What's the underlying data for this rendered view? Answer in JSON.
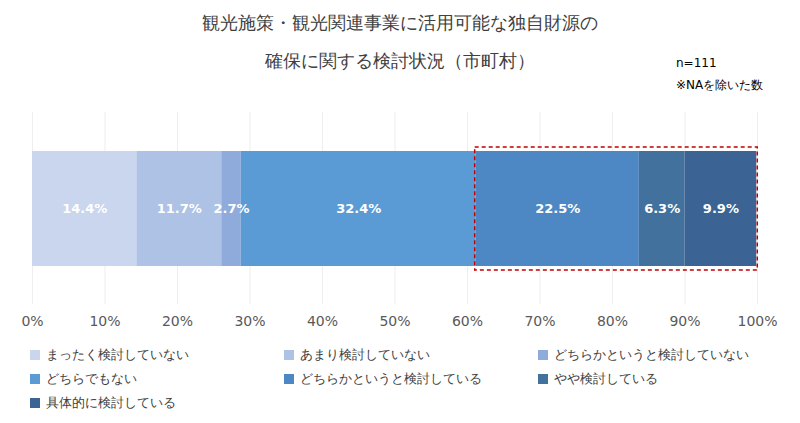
{
  "chart_data": {
    "type": "bar",
    "title": "観光施策・観光関連事業に活用可能な独自財源の\n確保に関する検討状況（市町村）",
    "annotations": [
      "n=111",
      "※NAを除いた数"
    ],
    "orientation": "horizontal",
    "stacked": true,
    "data_labels": true,
    "grid": true,
    "legend": "bottom",
    "categories": [
      null
    ],
    "xlim": [
      0,
      100
    ],
    "xticks": [
      {
        "value": 0,
        "label": "0%"
      },
      {
        "value": 10,
        "label": "10%"
      },
      {
        "value": 20,
        "label": "20%"
      },
      {
        "value": 30,
        "label": "30%"
      },
      {
        "value": 40,
        "label": "40%"
      },
      {
        "value": 50,
        "label": "50%"
      },
      {
        "value": 60,
        "label": "60%"
      },
      {
        "value": 70,
        "label": "70%"
      },
      {
        "value": 80,
        "label": "80%"
      },
      {
        "value": 90,
        "label": "90%"
      },
      {
        "value": 100,
        "label": "100%"
      }
    ],
    "series": [
      {
        "name": "まったく検討していない",
        "color": "#c9d6ee",
        "values": [
          14.4
        ],
        "value_labels": [
          "14.4%"
        ]
      },
      {
        "name": "あまり検討していない",
        "color": "#adc2e4",
        "values": [
          11.7
        ],
        "value_labels": [
          "11.7%"
        ]
      },
      {
        "name": "どちらかというと検討していない",
        "color": "#8eabdb",
        "values": [
          2.7
        ],
        "value_labels": [
          "2.7%"
        ]
      },
      {
        "name": "どちらでもない",
        "color": "#5b9bd5",
        "values": [
          32.4
        ],
        "value_labels": [
          "32.4%"
        ]
      },
      {
        "name": "どちらかというと検討している",
        "color": "#4d88c4",
        "values": [
          22.5
        ],
        "value_labels": [
          "22.5%"
        ]
      },
      {
        "name": "やや検討している",
        "color": "#41719c",
        "values": [
          6.3
        ],
        "value_labels": [
          "6.3%"
        ]
      },
      {
        "name": "具体的に検討している",
        "color": "#3b6494",
        "values": [
          9.9
        ],
        "value_labels": [
          "9.9%"
        ]
      }
    ]
  }
}
